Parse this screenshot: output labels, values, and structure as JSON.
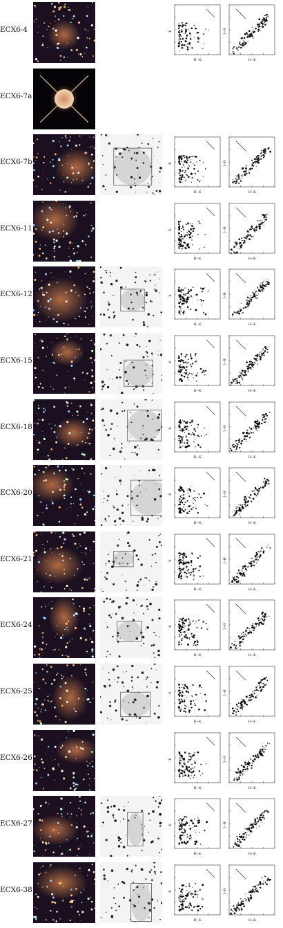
{
  "figure": {
    "fields": [
      {
        "id": "ECX6-4",
        "has_ks_image": false,
        "has_cmd": true
      },
      {
        "id": "ECX6-7a",
        "has_ks_image": false,
        "has_cmd": false
      },
      {
        "id": "ECX6-7b",
        "has_ks_image": true,
        "has_cmd": true
      },
      {
        "id": "ECX6-11",
        "has_ks_image": false,
        "has_cmd": true
      },
      {
        "id": "ECX6-12",
        "has_ks_image": true,
        "has_cmd": true
      },
      {
        "id": "ECX6-15",
        "has_ks_image": true,
        "has_cmd": true
      },
      {
        "id": "ECX6-18",
        "has_ks_image": true,
        "has_cmd": true
      },
      {
        "id": "ECX6-20",
        "has_ks_image": true,
        "has_cmd": true
      },
      {
        "id": "ECX6-21",
        "has_ks_image": true,
        "has_cmd": true
      },
      {
        "id": "ECX6-24",
        "has_ks_image": true,
        "has_cmd": true
      },
      {
        "id": "ECX6-25",
        "has_ks_image": true,
        "has_cmd": true
      },
      {
        "id": "ECX6-26",
        "has_ks_image": false,
        "has_cmd": true
      },
      {
        "id": "ECX6-27",
        "has_ks_image": true,
        "has_cmd": true
      },
      {
        "id": "ECX6-38",
        "has_ks_image": true,
        "has_cmd": true
      }
    ],
    "cmd_axes": {
      "left": {
        "xlabel": "H−K",
        "ylabel": "K"
      },
      "right": {
        "xlabel": "H−K",
        "ylabel": "J−H"
      }
    },
    "colors": {
      "rgb_background": "#1a1020",
      "nebula": "#c97a4a",
      "gray_background": "#f4f4f4",
      "ink": "#111111"
    }
  }
}
